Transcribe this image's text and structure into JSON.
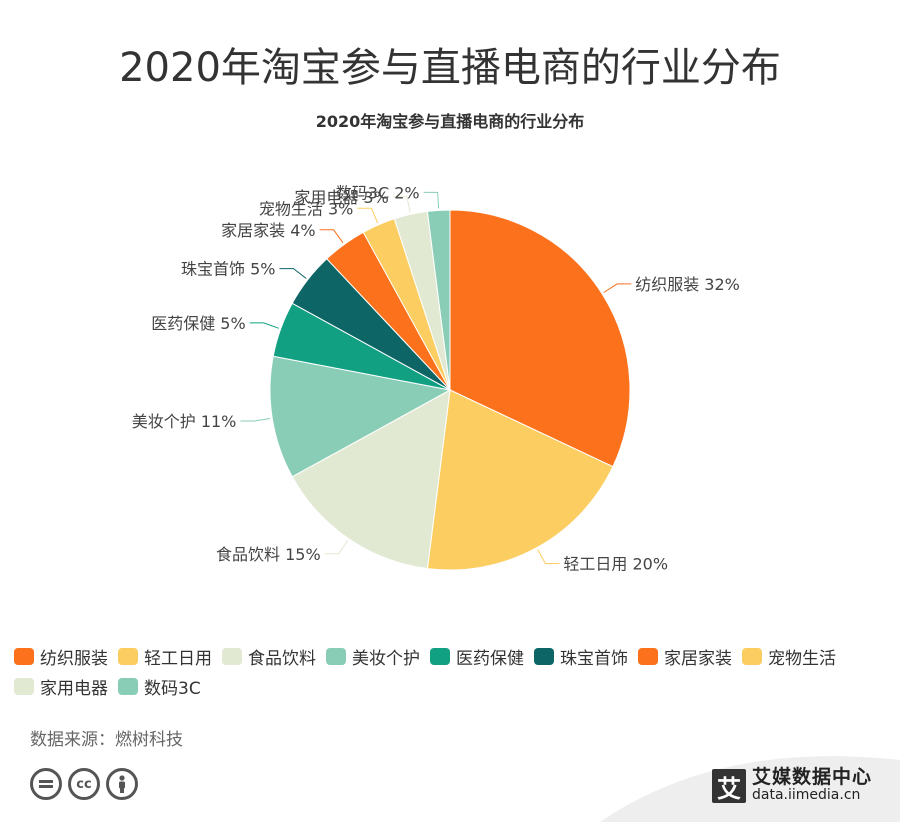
{
  "header": {
    "main_title": "2020年淘宝参与直播电商的行业分布",
    "sub_title": "2020年淘宝参与直播电商的行业分布"
  },
  "chart_data": {
    "type": "pie",
    "title": "2020年淘宝参与直播电商的行业分布",
    "unit": "%",
    "slices": [
      {
        "label": "纺织服装",
        "value": 32,
        "color": "#FC711C"
      },
      {
        "label": "轻工日用",
        "value": 20,
        "color": "#FCCE61"
      },
      {
        "label": "食品饮料",
        "value": 15,
        "color": "#E2E9D2"
      },
      {
        "label": "美妆个护",
        "value": 11,
        "color": "#89CDB7"
      },
      {
        "label": "医药保健",
        "value": 5,
        "color": "#12A083"
      },
      {
        "label": "珠宝首饰",
        "value": 5,
        "color": "#0E6565"
      },
      {
        "label": "家居家装",
        "value": 4,
        "color": "#FC711C"
      },
      {
        "label": "宠物生活",
        "value": 3,
        "color": "#FCCE61"
      },
      {
        "label": "家用电器",
        "value": 3,
        "color": "#E2E9D2"
      },
      {
        "label": "数码3C",
        "value": 2,
        "color": "#89CDB7"
      }
    ],
    "legend_position": "bottom"
  },
  "footer": {
    "source": "数据来源：燃树科技",
    "cc_icons": [
      "equals-icon",
      "cc-icon",
      "person-icon"
    ],
    "cc_text": "cc",
    "brand_logo": "艾",
    "brand_name": "艾媒数据中心",
    "brand_url": "data.iimedia.cn"
  }
}
